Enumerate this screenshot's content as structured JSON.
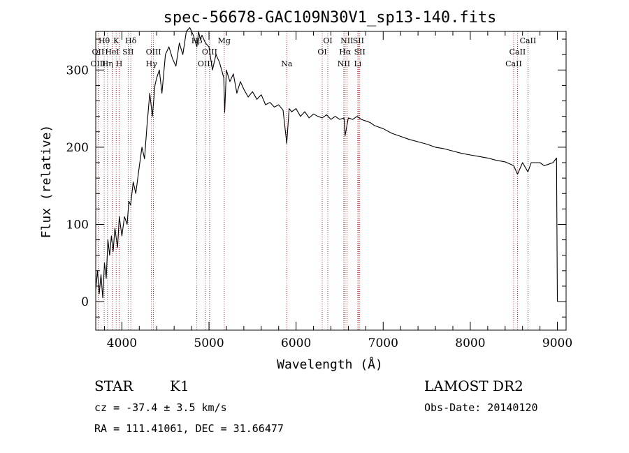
{
  "chart_data": {
    "type": "line",
    "title": "spec-56678-GAC109N30V1_sp13-140.fits",
    "xlabel": "Wavelength (Å)",
    "ylabel": "Flux (relative)",
    "xlim": [
      3700,
      9100
    ],
    "ylim": [
      -37,
      350
    ],
    "x_ticks": [
      4000,
      5000,
      6000,
      7000,
      8000,
      9000
    ],
    "y_ticks": [
      0,
      100,
      200,
      300
    ],
    "grid": false,
    "series": [
      {
        "x": [
          3700,
          3720,
          3740,
          3760,
          3780,
          3800,
          3820,
          3840,
          3860,
          3880,
          3900,
          3920,
          3950,
          3970,
          4000,
          4030,
          4060,
          4080,
          4100,
          4130,
          4160,
          4200,
          4230,
          4260,
          4290,
          4320,
          4350,
          4380,
          4400,
          4430,
          4460,
          4500,
          4540,
          4580,
          4620,
          4660,
          4700,
          4740,
          4780,
          4820,
          4861,
          4880,
          4900,
          4920,
          4960,
          5000,
          5040,
          5080,
          5120,
          5170,
          5180,
          5200,
          5240,
          5280,
          5320,
          5360,
          5400,
          5450,
          5500,
          5550,
          5600,
          5650,
          5700,
          5750,
          5800,
          5850,
          5893,
          5920,
          5950,
          6000,
          6050,
          6100,
          6150,
          6200,
          6250,
          6300,
          6350,
          6400,
          6450,
          6500,
          6550,
          6563,
          6600,
          6650,
          6700,
          6750,
          6800,
          6850,
          6900,
          6950,
          7000,
          7100,
          7200,
          7300,
          7400,
          7500,
          7600,
          7700,
          7800,
          7900,
          8000,
          8100,
          8200,
          8300,
          8400,
          8498,
          8542,
          8600,
          8662,
          8700,
          8800,
          8850,
          8900,
          8950,
          8990,
          9000
        ],
        "values": [
          15,
          40,
          10,
          35,
          5,
          50,
          30,
          80,
          60,
          85,
          65,
          95,
          70,
          110,
          85,
          110,
          100,
          130,
          125,
          155,
          140,
          175,
          200,
          185,
          230,
          270,
          240,
          280,
          290,
          300,
          270,
          320,
          330,
          315,
          305,
          335,
          320,
          350,
          355,
          345,
          330,
          350,
          340,
          345,
          335,
          330,
          300,
          320,
          310,
          290,
          245,
          300,
          285,
          295,
          270,
          285,
          275,
          265,
          272,
          262,
          268,
          255,
          258,
          252,
          255,
          248,
          205,
          250,
          246,
          250,
          240,
          246,
          238,
          243,
          240,
          238,
          242,
          236,
          240,
          236,
          238,
          215,
          238,
          236,
          240,
          236,
          234,
          232,
          228,
          226,
          224,
          218,
          214,
          210,
          207,
          204,
          200,
          198,
          195,
          192,
          190,
          188,
          186,
          183,
          181,
          176,
          165,
          180,
          168,
          180,
          180,
          176,
          178,
          180,
          186,
          0
        ]
      }
    ],
    "spectral_lines": [
      {
        "label": "Hθ",
        "x": 3797,
        "row": 0
      },
      {
        "label": "K",
        "x": 3934,
        "row": 0
      },
      {
        "label": "Hδ",
        "x": 4102,
        "row": 0
      },
      {
        "label": "Hβ",
        "x": 4861,
        "row": 0
      },
      {
        "label": "Mg",
        "x": 5175,
        "row": 0
      },
      {
        "label": "OI",
        "x": 6364,
        "row": 0
      },
      {
        "label": "NII",
        "x": 6583,
        "row": 0
      },
      {
        "label": "SII",
        "x": 6716,
        "row": 0
      },
      {
        "label": "CaII",
        "x": 8662,
        "row": 0
      },
      {
        "label": "OII",
        "x": 3727,
        "row": 1
      },
      {
        "label": "HeI",
        "x": 3889,
        "row": 1
      },
      {
        "label": "SII",
        "x": 4072,
        "row": 1
      },
      {
        "label": "OIII",
        "x": 4363,
        "row": 1
      },
      {
        "label": "OIII",
        "x": 5007,
        "row": 1
      },
      {
        "label": "OI",
        "x": 6300,
        "row": 1
      },
      {
        "label": "Hα",
        "x": 6563,
        "row": 1
      },
      {
        "label": "SII",
        "x": 6731,
        "row": 1
      },
      {
        "label": "CaII",
        "x": 8542,
        "row": 1
      },
      {
        "label": "OIII",
        "x": 3727,
        "row": 2
      },
      {
        "label": "Hη",
        "x": 3835,
        "row": 2
      },
      {
        "label": "H",
        "x": 3969,
        "row": 2
      },
      {
        "label": "Hγ",
        "x": 4340,
        "row": 2
      },
      {
        "label": "OIII",
        "x": 4959,
        "row": 2
      },
      {
        "label": "Na",
        "x": 5893,
        "row": 2
      },
      {
        "label": "NII",
        "x": 6548,
        "row": 2
      },
      {
        "label": "Li",
        "x": 6708,
        "row": 2
      },
      {
        "label": "CaII",
        "x": 8498,
        "row": 2
      }
    ],
    "line_color": "#000000",
    "marker_color": "#8b0000"
  },
  "info": {
    "object_class": "STAR",
    "subclass": "K1",
    "velocity": "cz = -37.4 ± 3.5 km/s",
    "coords": "RA = 111.41061, DEC =  31.66477",
    "survey": "LAMOST DR2",
    "obs_date": "Obs-Date: 20140120"
  }
}
